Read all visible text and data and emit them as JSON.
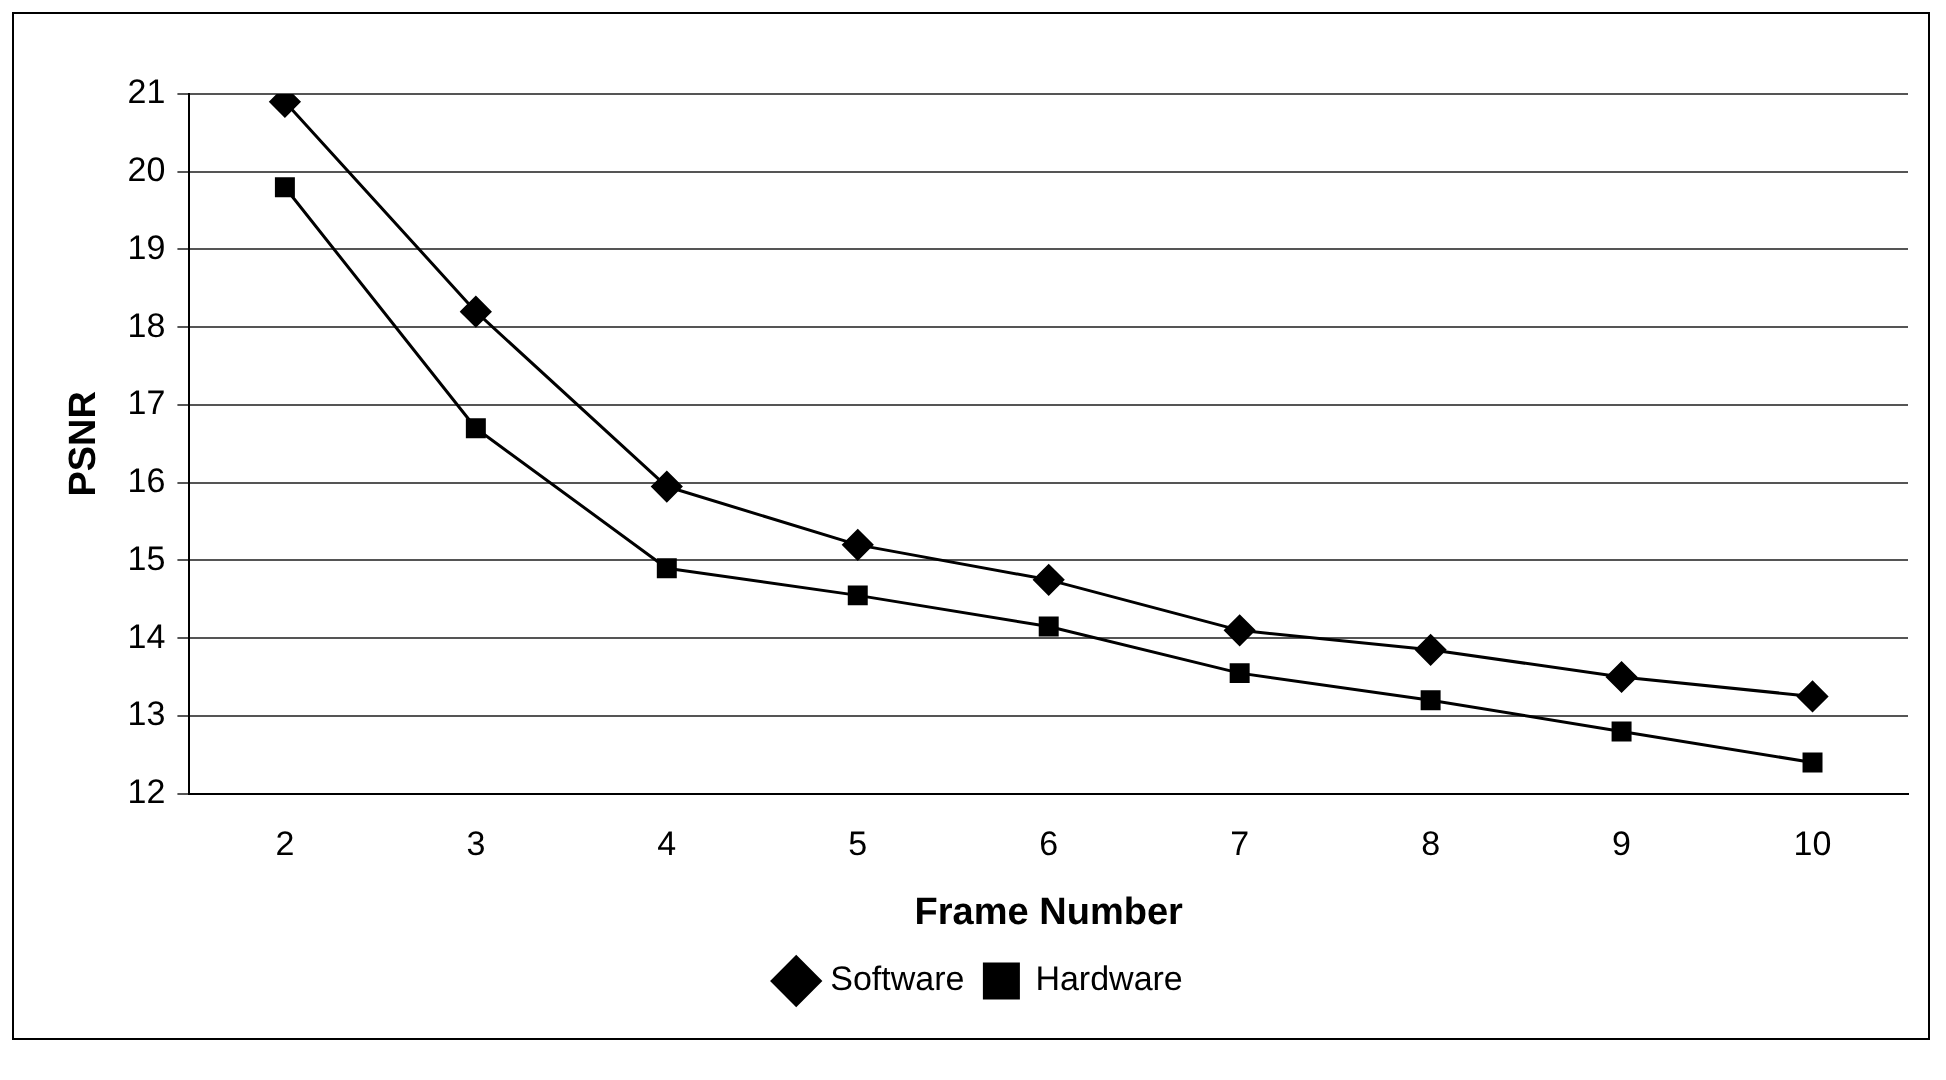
{
  "chart_data": {
    "type": "line",
    "xlabel": "Frame Number",
    "ylabel": "PSNR",
    "categories": [
      "2",
      "3",
      "4",
      "5",
      "6",
      "7",
      "8",
      "9",
      "10"
    ],
    "series": [
      {
        "name": "Software",
        "color": "#000000",
        "marker": "diamond",
        "values": [
          20.9,
          18.2,
          15.95,
          15.2,
          14.75,
          14.1,
          13.85,
          13.5,
          13.25
        ]
      },
      {
        "name": "Hardware",
        "color": "#000000",
        "marker": "square",
        "values": [
          19.8,
          16.7,
          14.9,
          14.55,
          14.15,
          13.55,
          13.2,
          12.8,
          12.4
        ]
      }
    ],
    "ylim": [
      12,
      21
    ],
    "yticks": [
      12,
      13,
      14,
      15,
      16,
      17,
      18,
      19,
      20,
      21
    ],
    "grid": "y",
    "legend": "bottom",
    "line_style": "solid"
  }
}
